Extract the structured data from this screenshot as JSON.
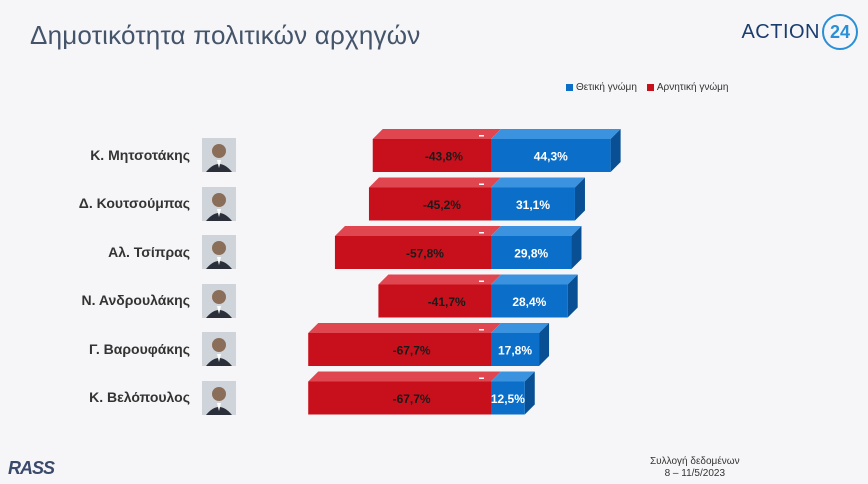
{
  "header": {
    "title": "Δημοτικότητα πολιτικών αρχηγών",
    "brand_text": "ACTION",
    "brand_number": "24"
  },
  "legend": {
    "positive": "Θετική γνώμη",
    "negative": "Αρνητική γνώμη"
  },
  "colors": {
    "positive": "#0b6fc9",
    "negative": "#c8101d"
  },
  "footer": {
    "line1": "Συλλογή δεδομένων",
    "line2": "8 – 11/5/2023",
    "logo": "RASS"
  },
  "chart_data": {
    "type": "bar",
    "orientation": "horizontal-diverging",
    "categories": [
      "Κ. Μητσοτάκης",
      "Δ. Κουτσούμπας",
      "Αλ. Τσίπρας",
      "Ν. Ανδρουλάκης",
      "Γ. Βαρουφάκης",
      "Κ. Βελόπουλος"
    ],
    "series": [
      {
        "name": "Αρνητική γνώμη",
        "values": [
          -43.8,
          -45.2,
          -57.8,
          -41.7,
          -67.7,
          -67.7
        ],
        "labels": [
          "-43,8%",
          "-45,2%",
          "-57,8%",
          "-41,7%",
          "-67,7%",
          "-67,7%"
        ]
      },
      {
        "name": "Θετική γνώμη",
        "values": [
          44.3,
          31.1,
          29.8,
          28.4,
          17.8,
          12.5
        ],
        "labels": [
          "44,3%",
          "31,1%",
          "29,8%",
          "28,4%",
          "17,8%",
          "12,5%"
        ]
      }
    ],
    "legend_position": "top-right"
  }
}
